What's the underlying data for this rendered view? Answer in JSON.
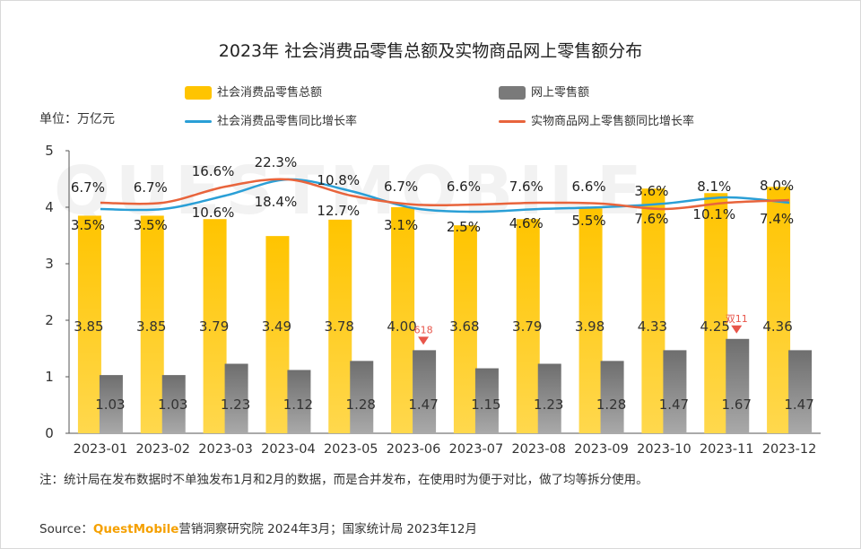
{
  "title": "2023年 社会消费品零售总额及实物商品网上零售额分布",
  "unit_label": "单位：万亿元",
  "legend": {
    "bar1": "社会消费品零售总额",
    "bar2": "网上零售额",
    "line1": "社会消费品零售同比增长率",
    "line2": "实物商品网上零售额同比增长率"
  },
  "colors": {
    "bar1": "#ffc400",
    "bar2": "#7a7a7a",
    "line1": "#2a9fd6",
    "line2": "#e8643c",
    "marker": "#e8554a"
  },
  "watermark": "QUESTMOBILE",
  "note": "注：统计局在发布数据时不单独发布1月和2月的数据，而是合并发布，在使用时为便于对比，做了均等拆分使用。",
  "source": {
    "prefix": "Source：",
    "brand": "QuestMobile",
    "rest": "营销洞察研究院 2024年3月；国家统计局 2023年12月"
  },
  "chart_data": {
    "type": "bar",
    "categories": [
      "2023-01",
      "2023-02",
      "2023-03",
      "2023-04",
      "2023-05",
      "2023-06",
      "2023-07",
      "2023-08",
      "2023-09",
      "2023-10",
      "2023-11",
      "2023-12"
    ],
    "ylim": [
      0,
      5
    ],
    "yticks": [
      "0",
      "1",
      "2",
      "3",
      "4",
      "5"
    ],
    "series": [
      {
        "name": "社会消费品零售总额",
        "kind": "bar",
        "values": [
          3.85,
          3.85,
          3.79,
          3.49,
          3.78,
          4.0,
          3.68,
          3.79,
          3.98,
          4.33,
          4.25,
          4.36
        ],
        "labels": [
          "3.85",
          "3.85",
          "3.79",
          "3.49",
          "3.78",
          "4.00",
          "3.68",
          "3.79",
          "3.98",
          "4.33",
          "4.25",
          "4.36"
        ]
      },
      {
        "name": "网上零售额",
        "kind": "bar",
        "values": [
          1.03,
          1.03,
          1.23,
          1.12,
          1.28,
          1.47,
          1.15,
          1.23,
          1.28,
          1.47,
          1.67,
          1.47
        ],
        "labels": [
          "1.03",
          "1.03",
          "1.23",
          "1.12",
          "1.28",
          "1.47",
          "1.15",
          "1.23",
          "1.28",
          "1.47",
          "1.67",
          "1.47"
        ]
      },
      {
        "name": "社会消费品零售同比增长率",
        "kind": "line",
        "labels": [
          "3.5%",
          "3.5%",
          "10.6%",
          "18.4%",
          "12.7%",
          "3.1%",
          "2.5%",
          "4.6%",
          "5.5%",
          "7.6%",
          "10.1%",
          "7.4%"
        ]
      },
      {
        "name": "实物商品网上零售额同比增长率",
        "kind": "line",
        "labels": [
          "6.7%",
          "6.7%",
          "16.6%",
          "22.3%",
          "10.8%",
          "6.7%",
          "6.6%",
          "7.6%",
          "6.6%",
          "3.6%",
          "8.1%",
          "8.0%"
        ]
      }
    ],
    "annotations": [
      {
        "category": "2023-06",
        "text": "618"
      },
      {
        "category": "2023-11",
        "text": "双11"
      }
    ]
  }
}
